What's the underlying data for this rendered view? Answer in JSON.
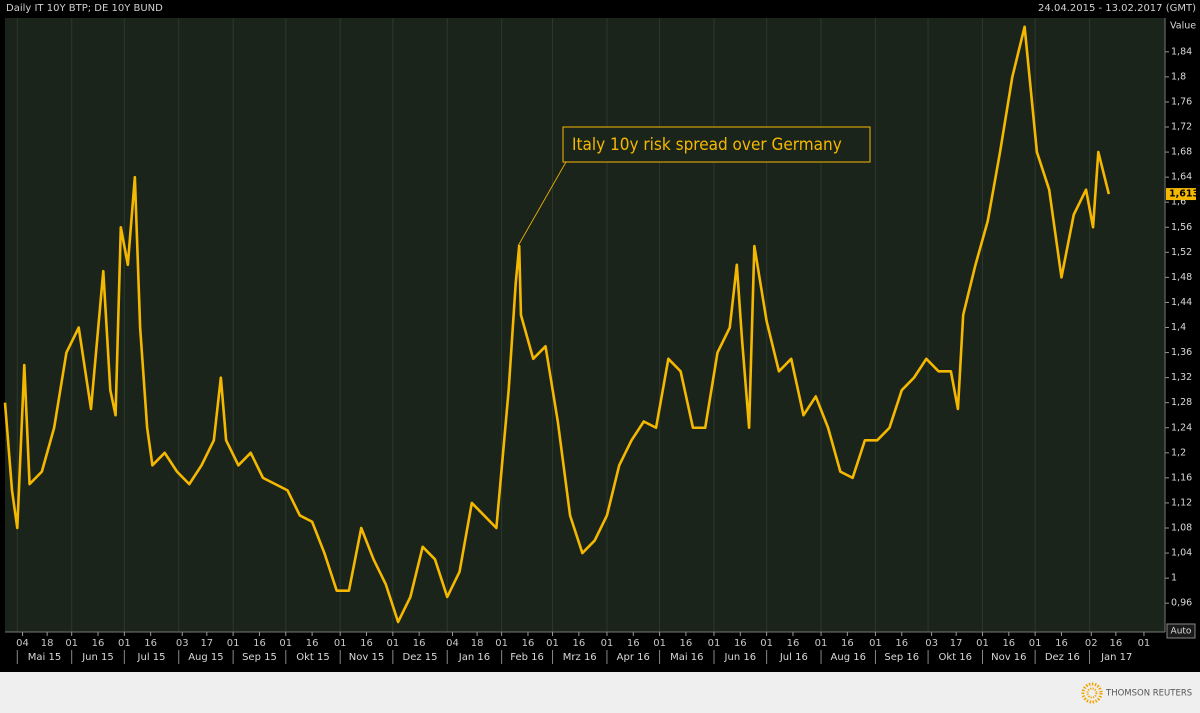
{
  "chart_data": {
    "type": "line",
    "title": "Daily IT 10Y BTP; DE 10Y BUND",
    "date_range": "24.04.2015 - 13.02.2017 (GMT)",
    "y_axis_label": "Value",
    "annotation": "Italy 10y risk spread over Germany",
    "auto_button": "Auto",
    "source": "THOMSON REUTERS",
    "last_value": {
      "value": 1.613,
      "label": "1,613"
    },
    "xlim": [
      "2015-04-24",
      "2017-02-13"
    ],
    "ylim": [
      0.914,
      1.894
    ],
    "grid": true,
    "yticks": [
      {
        "value": 0.96,
        "label": "0,96"
      },
      1,
      {
        "value": 1.04,
        "label": "1,04"
      },
      {
        "value": 1.08,
        "label": "1,08"
      },
      {
        "value": 1.12,
        "label": "1,12"
      },
      {
        "value": 1.16,
        "label": "1,16"
      },
      {
        "value": 1.2,
        "label": "1,2"
      },
      {
        "value": 1.24,
        "label": "1,24"
      },
      {
        "value": 1.28,
        "label": "1,28"
      },
      {
        "value": 1.32,
        "label": "1,32"
      },
      {
        "value": 1.36,
        "label": "1,36"
      },
      {
        "value": 1.4,
        "label": "1,4"
      },
      {
        "value": 1.44,
        "label": "1,44"
      },
      {
        "value": 1.48,
        "label": "1,48"
      },
      {
        "value": 1.52,
        "label": "1,52"
      },
      {
        "value": 1.56,
        "label": "1,56"
      },
      {
        "value": 1.6,
        "label": "1,6"
      },
      {
        "value": 1.64,
        "label": "1,64"
      },
      {
        "value": 1.68,
        "label": "1,68"
      },
      {
        "value": 1.72,
        "label": "1,72"
      },
      {
        "value": 1.76,
        "label": "1,76"
      },
      {
        "value": 1.8,
        "label": "1,8"
      },
      {
        "value": 1.84,
        "label": "1,84"
      }
    ],
    "xticks": [
      {
        "value": "2015-05-04",
        "label": "04"
      },
      {
        "value": "2015-05-18",
        "label": "18"
      },
      {
        "value": "2015-06-01",
        "label": "01"
      },
      {
        "value": "2015-06-16",
        "label": "16"
      },
      {
        "value": "2015-07-01",
        "label": "01"
      },
      {
        "value": "2015-07-16",
        "label": "16"
      },
      {
        "value": "2015-08-03",
        "label": "03"
      },
      {
        "value": "2015-08-17",
        "label": "17"
      },
      {
        "value": "2015-09-01",
        "label": "01"
      },
      {
        "value": "2015-09-16",
        "label": "16"
      },
      {
        "value": "2015-10-01",
        "label": "01"
      },
      {
        "value": "2015-10-16",
        "label": "16"
      },
      {
        "value": "2015-11-01",
        "label": "01"
      },
      {
        "value": "2015-11-16",
        "label": "16"
      },
      {
        "value": "2015-12-01",
        "label": "01"
      },
      {
        "value": "2015-12-16",
        "label": "16"
      },
      {
        "value": "2016-01-04",
        "label": "04"
      },
      {
        "value": "2016-01-18",
        "label": "18"
      },
      {
        "value": "2016-02-01",
        "label": "01"
      },
      {
        "value": "2016-02-16",
        "label": "16"
      },
      {
        "value": "2016-03-01",
        "label": "01"
      },
      {
        "value": "2016-03-16",
        "label": "16"
      },
      {
        "value": "2016-04-01",
        "label": "01"
      },
      {
        "value": "2016-04-16",
        "label": "16"
      },
      {
        "value": "2016-05-01",
        "label": "01"
      },
      {
        "value": "2016-05-16",
        "label": "16"
      },
      {
        "value": "2016-06-01",
        "label": "01"
      },
      {
        "value": "2016-06-16",
        "label": "16"
      },
      {
        "value": "2016-07-01",
        "label": "01"
      },
      {
        "value": "2016-07-16",
        "label": "16"
      },
      {
        "value": "2016-08-01",
        "label": "01"
      },
      {
        "value": "2016-08-16",
        "label": "16"
      },
      {
        "value": "2016-09-01",
        "label": "01"
      },
      {
        "value": "2016-09-16",
        "label": "16"
      },
      {
        "value": "2016-10-03",
        "label": "03"
      },
      {
        "value": "2016-10-17",
        "label": "17"
      },
      {
        "value": "2016-11-01",
        "label": "01"
      },
      {
        "value": "2016-11-16",
        "label": "16"
      },
      {
        "value": "2016-12-01",
        "label": "01"
      },
      {
        "value": "2016-12-16",
        "label": "16"
      },
      {
        "value": "2017-01-02",
        "label": "02"
      },
      {
        "value": "2017-01-16",
        "label": "16"
      },
      {
        "value": "2017-02-01",
        "label": "01"
      }
    ],
    "month_labels": [
      {
        "value": "2015-05",
        "label": "Mai 15"
      },
      {
        "value": "2015-06",
        "label": "Jun 15"
      },
      {
        "value": "2015-07",
        "label": "Jul 15"
      },
      {
        "value": "2015-08",
        "label": "Aug 15"
      },
      {
        "value": "2015-09",
        "label": "Sep 15"
      },
      {
        "value": "2015-10",
        "label": "Okt 15"
      },
      {
        "value": "2015-11",
        "label": "Nov 15"
      },
      {
        "value": "2015-12",
        "label": "Dez 15"
      },
      {
        "value": "2016-01",
        "label": "Jan 16"
      },
      {
        "value": "2016-02",
        "label": "Feb 16"
      },
      {
        "value": "2016-03",
        "label": "Mrz 16"
      },
      {
        "value": "2016-04",
        "label": "Apr 16"
      },
      {
        "value": "2016-05",
        "label": "Mai 16"
      },
      {
        "value": "2016-06",
        "label": "Jun 16"
      },
      {
        "value": "2016-07",
        "label": "Jul 16"
      },
      {
        "value": "2016-08",
        "label": "Aug 16"
      },
      {
        "value": "2016-09",
        "label": "Sep 16"
      },
      {
        "value": "2016-10",
        "label": "Okt 16"
      },
      {
        "value": "2016-11",
        "label": "Nov 16"
      },
      {
        "value": "2016-12",
        "label": "Dez 16"
      },
      {
        "value": "2017-01",
        "label": "Jan 17"
      }
    ],
    "x": [
      "2015-04-24",
      "2015-04-28",
      "2015-05-01",
      "2015-05-05",
      "2015-05-08",
      "2015-05-15",
      "2015-05-22",
      "2015-05-29",
      "2015-06-05",
      "2015-06-12",
      "2015-06-19",
      "2015-06-23",
      "2015-06-26",
      "2015-06-29",
      "2015-07-03",
      "2015-07-07",
      "2015-07-10",
      "2015-07-14",
      "2015-07-17",
      "2015-07-24",
      "2015-07-31",
      "2015-08-07",
      "2015-08-14",
      "2015-08-21",
      "2015-08-25",
      "2015-08-28",
      "2015-09-04",
      "2015-09-11",
      "2015-09-18",
      "2015-09-25",
      "2015-10-02",
      "2015-10-09",
      "2015-10-16",
      "2015-10-23",
      "2015-10-30",
      "2015-11-06",
      "2015-11-13",
      "2015-11-20",
      "2015-11-27",
      "2015-12-04",
      "2015-12-11",
      "2015-12-18",
      "2015-12-25",
      "2016-01-01",
      "2016-01-08",
      "2016-01-15",
      "2016-01-22",
      "2016-01-29",
      "2016-02-05",
      "2016-02-09",
      "2016-02-11",
      "2016-02-12",
      "2016-02-19",
      "2016-02-26",
      "2016-03-04",
      "2016-03-11",
      "2016-03-18",
      "2016-03-25",
      "2016-04-01",
      "2016-04-08",
      "2016-04-15",
      "2016-04-22",
      "2016-04-29",
      "2016-05-06",
      "2016-05-13",
      "2016-05-20",
      "2016-05-27",
      "2016-06-03",
      "2016-06-10",
      "2016-06-14",
      "2016-06-17",
      "2016-06-21",
      "2016-06-24",
      "2016-07-01",
      "2016-07-08",
      "2016-07-15",
      "2016-07-22",
      "2016-07-29",
      "2016-08-05",
      "2016-08-12",
      "2016-08-19",
      "2016-08-26",
      "2016-09-02",
      "2016-09-09",
      "2016-09-16",
      "2016-09-23",
      "2016-09-30",
      "2016-10-07",
      "2016-10-14",
      "2016-10-18",
      "2016-10-21",
      "2016-10-28",
      "2016-11-04",
      "2016-11-11",
      "2016-11-18",
      "2016-11-25",
      "2016-12-02",
      "2016-12-09",
      "2016-12-16",
      "2016-12-23",
      "2016-12-30",
      "2017-01-03",
      "2017-01-06",
      "2017-01-12"
    ],
    "series": [
      {
        "name": "IT 10Y BTP - DE 10Y BUND",
        "color": "#f5b800",
        "values": [
          1.28,
          1.14,
          1.08,
          1.34,
          1.15,
          1.17,
          1.24,
          1.36,
          1.4,
          1.27,
          1.49,
          1.3,
          1.26,
          1.56,
          1.5,
          1.64,
          1.4,
          1.24,
          1.18,
          1.2,
          1.17,
          1.15,
          1.18,
          1.22,
          1.32,
          1.22,
          1.18,
          1.2,
          1.16,
          1.15,
          1.14,
          1.1,
          1.09,
          1.04,
          0.98,
          0.98,
          1.08,
          1.03,
          0.99,
          0.93,
          0.97,
          1.05,
          1.03,
          0.97,
          1.01,
          1.12,
          1.1,
          1.08,
          1.3,
          1.47,
          1.53,
          1.42,
          1.35,
          1.37,
          1.25,
          1.1,
          1.04,
          1.06,
          1.1,
          1.18,
          1.22,
          1.25,
          1.24,
          1.35,
          1.33,
          1.24,
          1.24,
          1.36,
          1.4,
          1.5,
          1.38,
          1.24,
          1.53,
          1.41,
          1.33,
          1.35,
          1.26,
          1.29,
          1.24,
          1.17,
          1.16,
          1.22,
          1.22,
          1.24,
          1.3,
          1.32,
          1.35,
          1.33,
          1.33,
          1.27,
          1.42,
          1.5,
          1.57,
          1.68,
          1.8,
          1.88,
          1.68,
          1.62,
          1.48,
          1.58,
          1.62,
          1.56,
          1.68,
          1.613
        ]
      }
    ]
  }
}
